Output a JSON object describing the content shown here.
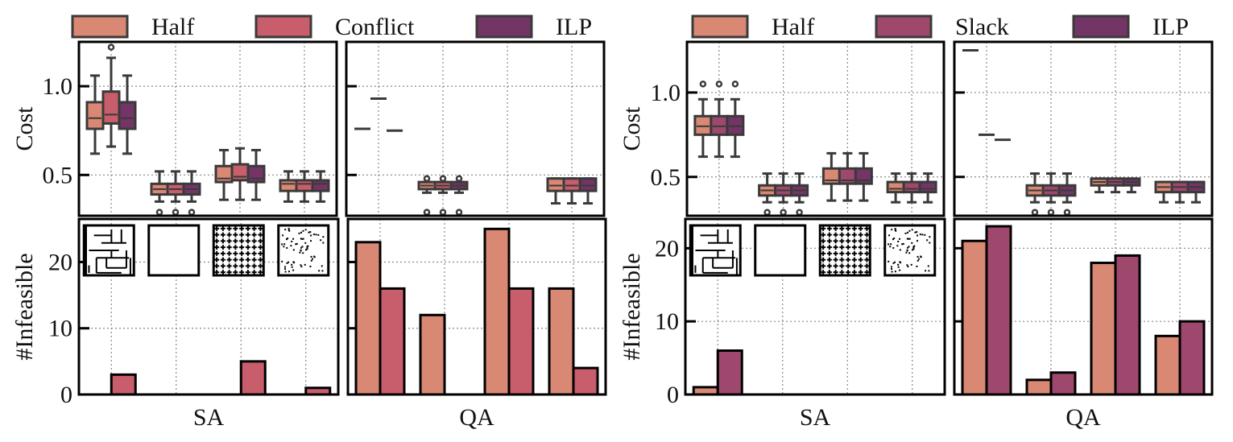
{
  "chart_data": [
    {
      "figure": "left",
      "legend": [
        {
          "label": "Half",
          "color": "#d98873"
        },
        {
          "label": "Conflict",
          "color": "#c85d6b"
        },
        {
          "label": "ILP",
          "color": "#733566"
        }
      ],
      "panels": [
        {
          "type": "box",
          "name": "cost-sa",
          "ylabel": "Cost",
          "ylim": [
            0.27,
            1.25
          ],
          "yticks": [
            0.5,
            1.0
          ],
          "ytick_labels": [
            "0.5",
            "1.0"
          ],
          "grid": true,
          "groups": [
            {
              "series": [
                {
                  "name": "Half",
                  "whislo": 0.62,
                  "q1": 0.76,
                  "med": 0.82,
                  "q3": 0.91,
                  "whishi": 1.06,
                  "fliers": []
                },
                {
                  "name": "Conflict",
                  "whislo": 0.66,
                  "q1": 0.79,
                  "med": 0.84,
                  "q3": 0.97,
                  "whishi": 1.16,
                  "fliers": [
                    1.22
                  ]
                },
                {
                  "name": "ILP",
                  "whislo": 0.62,
                  "q1": 0.76,
                  "med": 0.82,
                  "q3": 0.91,
                  "whishi": 1.06,
                  "fliers": []
                }
              ]
            },
            {
              "series": [
                {
                  "name": "Half",
                  "whislo": 0.35,
                  "q1": 0.39,
                  "med": 0.42,
                  "q3": 0.45,
                  "whishi": 0.52,
                  "fliers": [
                    0.29
                  ]
                },
                {
                  "name": "Conflict",
                  "whislo": 0.35,
                  "q1": 0.39,
                  "med": 0.42,
                  "q3": 0.45,
                  "whishi": 0.52,
                  "fliers": [
                    0.29
                  ]
                },
                {
                  "name": "ILP",
                  "whislo": 0.35,
                  "q1": 0.39,
                  "med": 0.42,
                  "q3": 0.45,
                  "whishi": 0.52,
                  "fliers": [
                    0.29
                  ]
                }
              ]
            },
            {
              "series": [
                {
                  "name": "Half",
                  "whislo": 0.36,
                  "q1": 0.46,
                  "med": 0.48,
                  "q3": 0.55,
                  "whishi": 0.64,
                  "fliers": []
                },
                {
                  "name": "Conflict",
                  "whislo": 0.36,
                  "q1": 0.47,
                  "med": 0.49,
                  "q3": 0.56,
                  "whishi": 0.65,
                  "fliers": []
                },
                {
                  "name": "ILP",
                  "whislo": 0.36,
                  "q1": 0.46,
                  "med": 0.48,
                  "q3": 0.55,
                  "whishi": 0.64,
                  "fliers": []
                }
              ]
            },
            {
              "series": [
                {
                  "name": "Half",
                  "whislo": 0.35,
                  "q1": 0.41,
                  "med": 0.45,
                  "q3": 0.47,
                  "whishi": 0.52,
                  "fliers": []
                },
                {
                  "name": "Conflict",
                  "whislo": 0.35,
                  "q1": 0.41,
                  "med": 0.45,
                  "q3": 0.47,
                  "whishi": 0.52,
                  "fliers": []
                },
                {
                  "name": "ILP",
                  "whislo": 0.35,
                  "q1": 0.41,
                  "med": 0.45,
                  "q3": 0.47,
                  "whishi": 0.52,
                  "fliers": []
                }
              ]
            }
          ]
        },
        {
          "type": "box",
          "name": "cost-qa",
          "ylabel": "",
          "ylim": [
            0.27,
            1.25
          ],
          "yticks": [
            0.5,
            1.0
          ],
          "ytick_labels": [
            "",
            ""
          ],
          "grid": true,
          "groups": [
            {
              "series": [
                {
                  "name": "Half",
                  "whislo": 0.76,
                  "q1": 0.76,
                  "med": 0.76,
                  "q3": 0.76,
                  "whishi": 0.76,
                  "fliers": []
                },
                {
                  "name": "Conflict",
                  "whislo": 0.93,
                  "q1": 0.93,
                  "med": 0.93,
                  "q3": 0.93,
                  "whishi": 0.93,
                  "fliers": []
                },
                {
                  "name": "ILP",
                  "whislo": 0.75,
                  "q1": 0.75,
                  "med": 0.75,
                  "q3": 0.75,
                  "whishi": 0.75,
                  "fliers": []
                }
              ]
            },
            {
              "series": [
                {
                  "name": "Half",
                  "whislo": 0.4,
                  "q1": 0.42,
                  "med": 0.44,
                  "q3": 0.46,
                  "whishi": 0.46,
                  "fliers": [
                    0.48,
                    0.29
                  ]
                },
                {
                  "name": "Conflict",
                  "whislo": 0.4,
                  "q1": 0.42,
                  "med": 0.44,
                  "q3": 0.46,
                  "whishi": 0.46,
                  "fliers": [
                    0.48,
                    0.29
                  ]
                },
                {
                  "name": "ILP",
                  "whislo": 0.4,
                  "q1": 0.42,
                  "med": 0.44,
                  "q3": 0.46,
                  "whishi": 0.46,
                  "fliers": [
                    0.48,
                    0.29
                  ]
                }
              ]
            },
            {
              "series": []
            },
            {
              "series": [
                {
                  "name": "Half",
                  "whislo": 0.34,
                  "q1": 0.41,
                  "med": 0.44,
                  "q3": 0.48,
                  "whishi": 0.48,
                  "fliers": []
                },
                {
                  "name": "Conflict",
                  "whislo": 0.34,
                  "q1": 0.41,
                  "med": 0.44,
                  "q3": 0.48,
                  "whishi": 0.48,
                  "fliers": []
                },
                {
                  "name": "ILP",
                  "whislo": 0.34,
                  "q1": 0.41,
                  "med": 0.44,
                  "q3": 0.48,
                  "whishi": 0.48,
                  "fliers": []
                }
              ]
            }
          ]
        },
        {
          "type": "bar",
          "name": "infeasible-sa",
          "ylabel": "#Infeasible",
          "xlabel": "SA",
          "ylim": [
            0,
            26.5
          ],
          "yticks": [
            0,
            10,
            20
          ],
          "ytick_labels": [
            "0",
            "10",
            "20"
          ],
          "grid": true,
          "series_names": [
            "Half",
            "Conflict"
          ],
          "groups": [
            [
              0,
              3
            ],
            [
              0,
              0
            ],
            [
              0,
              5
            ],
            [
              0,
              1
            ]
          ],
          "map_icons": [
            "maze",
            "empty",
            "dense-obstacles",
            "random-scatter"
          ]
        },
        {
          "type": "bar",
          "name": "infeasible-qa",
          "ylabel": "",
          "xlabel": "QA",
          "ylim": [
            0,
            26.5
          ],
          "yticks": [
            0,
            10,
            20
          ],
          "ytick_labels": [
            "",
            "",
            ""
          ],
          "grid": true,
          "series_names": [
            "Half",
            "Conflict"
          ],
          "groups": [
            [
              23,
              16
            ],
            [
              12,
              0
            ],
            [
              25,
              16
            ],
            [
              16,
              4
            ]
          ]
        }
      ]
    },
    {
      "figure": "right",
      "legend": [
        {
          "label": "Half",
          "color": "#d98873"
        },
        {
          "label": "Slack",
          "color": "#9e486d"
        },
        {
          "label": "ILP",
          "color": "#733566"
        }
      ],
      "panels": [
        {
          "type": "box",
          "name": "cost-sa",
          "ylabel": "Cost",
          "ylim": [
            0.27,
            1.3
          ],
          "yticks": [
            0.5,
            1.0
          ],
          "ytick_labels": [
            "0.5",
            "1.0"
          ],
          "grid": true,
          "groups": [
            {
              "series": [
                {
                  "name": "Half",
                  "whislo": 0.62,
                  "q1": 0.75,
                  "med": 0.8,
                  "q3": 0.86,
                  "whishi": 0.96,
                  "fliers": [
                    1.05
                  ]
                },
                {
                  "name": "Slack",
                  "whislo": 0.62,
                  "q1": 0.75,
                  "med": 0.8,
                  "q3": 0.86,
                  "whishi": 0.96,
                  "fliers": [
                    1.05
                  ]
                },
                {
                  "name": "ILP",
                  "whislo": 0.62,
                  "q1": 0.75,
                  "med": 0.8,
                  "q3": 0.86,
                  "whishi": 0.96,
                  "fliers": [
                    1.05
                  ]
                }
              ]
            },
            {
              "series": [
                {
                  "name": "Half",
                  "whislo": 0.35,
                  "q1": 0.39,
                  "med": 0.42,
                  "q3": 0.45,
                  "whishi": 0.52,
                  "fliers": [
                    0.29
                  ]
                },
                {
                  "name": "Slack",
                  "whislo": 0.35,
                  "q1": 0.39,
                  "med": 0.42,
                  "q3": 0.45,
                  "whishi": 0.52,
                  "fliers": [
                    0.29
                  ]
                },
                {
                  "name": "ILP",
                  "whislo": 0.35,
                  "q1": 0.39,
                  "med": 0.42,
                  "q3": 0.45,
                  "whishi": 0.52,
                  "fliers": [
                    0.29
                  ]
                }
              ]
            },
            {
              "series": [
                {
                  "name": "Half",
                  "whislo": 0.36,
                  "q1": 0.46,
                  "med": 0.48,
                  "q3": 0.55,
                  "whishi": 0.64,
                  "fliers": []
                },
                {
                  "name": "Slack",
                  "whislo": 0.36,
                  "q1": 0.46,
                  "med": 0.48,
                  "q3": 0.55,
                  "whishi": 0.64,
                  "fliers": []
                },
                {
                  "name": "ILP",
                  "whislo": 0.36,
                  "q1": 0.46,
                  "med": 0.48,
                  "q3": 0.55,
                  "whishi": 0.64,
                  "fliers": []
                }
              ]
            },
            {
              "series": [
                {
                  "name": "Half",
                  "whislo": 0.35,
                  "q1": 0.41,
                  "med": 0.43,
                  "q3": 0.47,
                  "whishi": 0.52,
                  "fliers": []
                },
                {
                  "name": "Slack",
                  "whislo": 0.35,
                  "q1": 0.41,
                  "med": 0.43,
                  "q3": 0.47,
                  "whishi": 0.52,
                  "fliers": []
                },
                {
                  "name": "ILP",
                  "whislo": 0.35,
                  "q1": 0.41,
                  "med": 0.43,
                  "q3": 0.47,
                  "whishi": 0.52,
                  "fliers": []
                }
              ]
            }
          ]
        },
        {
          "type": "box",
          "name": "cost-qa",
          "ylabel": "",
          "ylim": [
            0.27,
            1.3
          ],
          "yticks": [
            0.5,
            1.0
          ],
          "ytick_labels": [
            "",
            ""
          ],
          "grid": true,
          "groups": [
            {
              "series": [
                {
                  "name": "Half",
                  "whislo": 1.25,
                  "q1": 1.25,
                  "med": 1.25,
                  "q3": 1.25,
                  "whishi": 1.25,
                  "fliers": []
                },
                {
                  "name": "Slack",
                  "whislo": 0.75,
                  "q1": 0.75,
                  "med": 0.75,
                  "q3": 0.75,
                  "whishi": 0.75,
                  "fliers": []
                },
                {
                  "name": "ILP",
                  "whislo": 0.72,
                  "q1": 0.72,
                  "med": 0.72,
                  "q3": 0.72,
                  "whishi": 0.72,
                  "fliers": []
                }
              ]
            },
            {
              "series": [
                {
                  "name": "Half",
                  "whislo": 0.35,
                  "q1": 0.39,
                  "med": 0.42,
                  "q3": 0.45,
                  "whishi": 0.52,
                  "fliers": [
                    0.29
                  ]
                },
                {
                  "name": "Slack",
                  "whislo": 0.35,
                  "q1": 0.39,
                  "med": 0.42,
                  "q3": 0.45,
                  "whishi": 0.52,
                  "fliers": [
                    0.29
                  ]
                },
                {
                  "name": "ILP",
                  "whislo": 0.35,
                  "q1": 0.39,
                  "med": 0.42,
                  "q3": 0.45,
                  "whishi": 0.52,
                  "fliers": [
                    0.29
                  ]
                }
              ]
            },
            {
              "series": [
                {
                  "name": "Half",
                  "whislo": 0.41,
                  "q1": 0.45,
                  "med": 0.47,
                  "q3": 0.49,
                  "whishi": 0.49,
                  "fliers": []
                },
                {
                  "name": "Slack",
                  "whislo": 0.41,
                  "q1": 0.45,
                  "med": 0.47,
                  "q3": 0.49,
                  "whishi": 0.49,
                  "fliers": []
                },
                {
                  "name": "ILP",
                  "whislo": 0.41,
                  "q1": 0.45,
                  "med": 0.47,
                  "q3": 0.49,
                  "whishi": 0.49,
                  "fliers": []
                }
              ]
            },
            {
              "series": [
                {
                  "name": "Half",
                  "whislo": 0.35,
                  "q1": 0.41,
                  "med": 0.44,
                  "q3": 0.47,
                  "whishi": 0.47,
                  "fliers": []
                },
                {
                  "name": "Slack",
                  "whislo": 0.35,
                  "q1": 0.41,
                  "med": 0.44,
                  "q3": 0.47,
                  "whishi": 0.47,
                  "fliers": []
                },
                {
                  "name": "ILP",
                  "whislo": 0.35,
                  "q1": 0.41,
                  "med": 0.44,
                  "q3": 0.47,
                  "whishi": 0.47,
                  "fliers": []
                }
              ]
            }
          ]
        },
        {
          "type": "bar",
          "name": "infeasible-sa",
          "ylabel": "#Infeasible",
          "xlabel": "SA",
          "ylim": [
            0,
            24
          ],
          "yticks": [
            0,
            10,
            20
          ],
          "ytick_labels": [
            "0",
            "10",
            "20"
          ],
          "grid": true,
          "series_names": [
            "Half",
            "Slack"
          ],
          "groups": [
            [
              1,
              6
            ],
            [
              0,
              0
            ],
            [
              0,
              0
            ],
            [
              0,
              0
            ]
          ],
          "map_icons": [
            "maze",
            "empty",
            "dense-obstacles",
            "random-scatter"
          ]
        },
        {
          "type": "bar",
          "name": "infeasible-qa",
          "ylabel": "",
          "xlabel": "QA",
          "ylim": [
            0,
            24
          ],
          "yticks": [
            0,
            10,
            20
          ],
          "ytick_labels": [
            "",
            "",
            ""
          ],
          "grid": true,
          "series_names": [
            "Half",
            "Slack"
          ],
          "groups": [
            [
              21,
              23
            ],
            [
              2,
              3
            ],
            [
              18,
              19
            ],
            [
              8,
              10
            ]
          ]
        }
      ]
    }
  ]
}
